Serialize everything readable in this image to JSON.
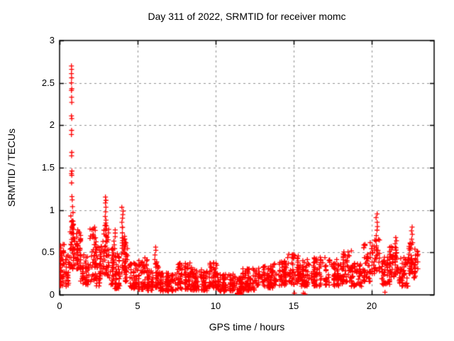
{
  "window": {
    "background": "#ffffff"
  },
  "chart_data": {
    "type": "scatter",
    "title": "Day 311 of 2022, SRMTID for receiver momc",
    "xlabel": "GPS time / hours",
    "ylabel": "SRMTID / TECUs",
    "xlim": [
      0,
      24
    ],
    "ylim": [
      0,
      3
    ],
    "xticks": [
      0,
      5,
      10,
      15,
      20
    ],
    "yticks": [
      0,
      0.5,
      1,
      1.5,
      2,
      2.5,
      3
    ],
    "grid": {
      "style": "dashed",
      "color": "#909090"
    },
    "legend": "none",
    "marker": {
      "glyph": "+",
      "color": "#ff0000",
      "size": 7
    },
    "axis_color": "#000000",
    "seed": 42,
    "outlier_points": [
      [
        0.76,
        2.7
      ],
      [
        0.77,
        2.66
      ],
      [
        0.76,
        2.61
      ],
      [
        0.77,
        2.56
      ],
      [
        0.76,
        2.5
      ],
      [
        0.78,
        2.43
      ],
      [
        0.76,
        2.41
      ],
      [
        0.77,
        2.33
      ],
      [
        0.78,
        2.27
      ],
      [
        0.76,
        2.11
      ],
      [
        0.78,
        2.08
      ],
      [
        0.77,
        1.94
      ],
      [
        0.76,
        1.89
      ],
      [
        0.78,
        1.68
      ],
      [
        0.77,
        1.64
      ],
      [
        0.79,
        1.46
      ],
      [
        0.76,
        1.43
      ],
      [
        0.78,
        1.41
      ],
      [
        0.77,
        1.32
      ],
      [
        0.79,
        1.16
      ],
      [
        0.81,
        1.12
      ],
      [
        0.83,
        1.04
      ],
      [
        0.86,
        0.97
      ],
      [
        0.72,
        0.93
      ],
      [
        11.48,
        0.01
      ],
      [
        11.55,
        0.02
      ],
      [
        11.62,
        0.01
      ],
      [
        15.05,
        0.02
      ],
      [
        15.62,
        0.02
      ],
      [
        15.72,
        0.01
      ],
      [
        20.85,
        0.03
      ]
    ],
    "spike_columns": [
      {
        "x": 0.05,
        "ys": [
          0.58,
          0.55,
          0.52,
          0.48,
          0.44,
          0.4,
          0.36,
          0.32,
          0.28,
          0.24,
          0.2,
          0.16,
          0.12
        ]
      },
      {
        "x": 2.97,
        "ys": [
          1.15,
          1.12,
          1.08,
          1.03,
          0.98,
          0.93,
          0.88,
          0.82,
          0.76,
          0.7,
          0.64,
          0.58,
          0.52,
          0.46
        ]
      },
      {
        "x": 3.52,
        "ys": [
          0.77,
          0.73,
          0.69,
          0.64,
          0.59,
          0.54
        ]
      },
      {
        "x": 4.03,
        "ys": [
          1.03,
          0.99,
          0.95,
          0.9,
          0.85,
          0.79,
          0.73,
          0.67,
          0.61,
          0.55
        ]
      },
      {
        "x": 6.12,
        "ys": [
          0.56,
          0.52,
          0.47,
          0.42,
          0.37
        ]
      },
      {
        "x": 20.32,
        "ys": [
          0.95,
          0.91,
          0.86,
          0.81,
          0.76,
          0.7,
          0.64,
          0.58,
          0.52,
          0.46
        ]
      },
      {
        "x": 21.55,
        "ys": [
          0.68,
          0.64,
          0.6,
          0.55,
          0.5
        ]
      },
      {
        "x": 22.58,
        "ys": [
          0.8,
          0.76,
          0.71,
          0.66,
          0.6
        ]
      }
    ],
    "density_bands": [
      [
        0.0,
        0.3,
        0.1,
        0.6,
        38
      ],
      [
        0.3,
        0.65,
        0.1,
        0.48,
        26
      ],
      [
        0.65,
        0.92,
        0.3,
        0.9,
        40
      ],
      [
        0.92,
        1.35,
        0.3,
        0.78,
        55
      ],
      [
        1.35,
        1.95,
        0.12,
        0.5,
        50
      ],
      [
        1.95,
        2.35,
        0.15,
        0.8,
        45
      ],
      [
        2.35,
        2.78,
        0.1,
        0.6,
        42
      ],
      [
        2.78,
        3.15,
        0.22,
        0.85,
        40
      ],
      [
        3.15,
        3.48,
        0.12,
        0.55,
        35
      ],
      [
        3.48,
        3.95,
        0.07,
        0.5,
        42
      ],
      [
        3.95,
        4.18,
        0.25,
        0.8,
        25
      ],
      [
        4.18,
        4.48,
        0.15,
        0.62,
        32
      ],
      [
        4.48,
        5.05,
        0.07,
        0.38,
        52
      ],
      [
        5.05,
        5.62,
        0.06,
        0.44,
        52
      ],
      [
        5.62,
        6.05,
        0.05,
        0.3,
        38
      ],
      [
        6.05,
        6.45,
        0.08,
        0.4,
        35
      ],
      [
        6.45,
        7.45,
        0.04,
        0.26,
        95
      ],
      [
        7.45,
        8.45,
        0.06,
        0.38,
        85
      ],
      [
        8.45,
        9.55,
        0.05,
        0.3,
        88
      ],
      [
        9.55,
        10.15,
        0.08,
        0.38,
        52
      ],
      [
        10.15,
        11.3,
        0.04,
        0.25,
        95
      ],
      [
        11.3,
        11.68,
        0.01,
        0.22,
        38
      ],
      [
        11.68,
        12.55,
        0.05,
        0.32,
        72
      ],
      [
        12.55,
        13.65,
        0.08,
        0.35,
        88
      ],
      [
        13.65,
        14.55,
        0.1,
        0.4,
        75
      ],
      [
        14.55,
        15.35,
        0.12,
        0.48,
        62
      ],
      [
        15.35,
        16.25,
        0.1,
        0.42,
        68
      ],
      [
        16.25,
        17.25,
        0.1,
        0.45,
        80
      ],
      [
        17.25,
        18.15,
        0.1,
        0.42,
        70
      ],
      [
        18.15,
        18.7,
        0.15,
        0.52,
        45
      ],
      [
        18.7,
        19.45,
        0.1,
        0.38,
        55
      ],
      [
        19.45,
        20.1,
        0.15,
        0.62,
        55
      ],
      [
        20.1,
        20.5,
        0.25,
        0.66,
        28
      ],
      [
        20.5,
        21.15,
        0.12,
        0.45,
        48
      ],
      [
        21.15,
        21.5,
        0.2,
        0.58,
        30
      ],
      [
        21.5,
        21.75,
        0.22,
        0.6,
        20
      ],
      [
        21.75,
        22.35,
        0.1,
        0.46,
        45
      ],
      [
        22.35,
        22.7,
        0.25,
        0.62,
        30
      ],
      [
        22.7,
        23.0,
        0.2,
        0.55,
        28
      ]
    ]
  }
}
